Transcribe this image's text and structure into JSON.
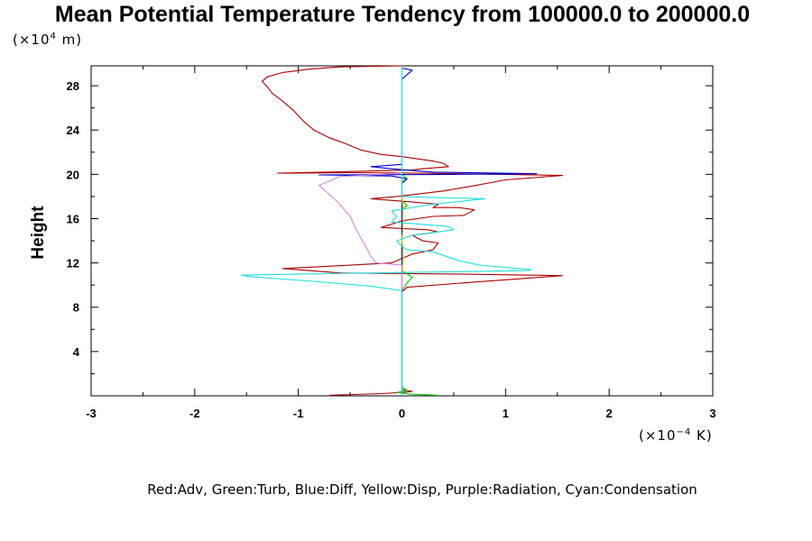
{
  "chart_data": {
    "type": "line",
    "title": "Mean Potential Temperature Tendency from 100000.0 to 200000.0",
    "y_unit_label": "(×10",
    "y_unit_exp": "4",
    "y_unit_suffix": " m)",
    "x_unit_label": "(×10",
    "x_unit_exp": "−4",
    "x_unit_suffix": " K)",
    "ylabel": "Height",
    "xlabel": "",
    "xlim": [
      -3,
      3
    ],
    "ylim": [
      0,
      29.8
    ],
    "x_ticks": [
      -3,
      -2,
      -1,
      0,
      1,
      2,
      3
    ],
    "x_tick_labels": [
      "-3",
      "-2",
      "-1",
      "0",
      "1",
      "2",
      "3"
    ],
    "y_ticks": [
      4,
      8,
      12,
      16,
      20,
      24,
      28
    ],
    "y_tick_labels": [
      "4",
      "8",
      "12",
      "16",
      "20",
      "24",
      "28"
    ],
    "legend_text": "Red:Adv, Green:Turb, Blue:Diff, Yellow:Disp, Purple:Radiation, Cyan:Condensation",
    "legend_position": "bottom",
    "grid": false,
    "series": [
      {
        "name": "Adv",
        "color": "#aa0000",
        "points": [
          [
            -0.7,
            0.05
          ],
          [
            -0.2,
            0.2
          ],
          [
            0.0,
            0.3
          ],
          [
            0.1,
            0.4
          ],
          [
            0.0,
            0.6
          ],
          [
            0.0,
            9.4
          ],
          [
            0.05,
            9.8
          ],
          [
            0.6,
            10.2
          ],
          [
            1.55,
            10.85
          ],
          [
            0.5,
            11.0
          ],
          [
            -0.6,
            11.1
          ],
          [
            -1.15,
            11.5
          ],
          [
            -0.5,
            11.8
          ],
          [
            -0.1,
            12.0
          ],
          [
            0.1,
            12.8
          ],
          [
            0.3,
            13.2
          ],
          [
            0.35,
            13.8
          ],
          [
            0.2,
            14.0
          ],
          [
            0.1,
            14.5
          ],
          [
            0.35,
            14.8
          ],
          [
            0.25,
            15.0
          ],
          [
            -0.2,
            15.2
          ],
          [
            0.0,
            15.8
          ],
          [
            0.3,
            16.2
          ],
          [
            0.6,
            16.3
          ],
          [
            0.7,
            16.8
          ],
          [
            0.55,
            17.0
          ],
          [
            0.3,
            17.0
          ],
          [
            0.35,
            17.3
          ],
          [
            0.1,
            17.5
          ],
          [
            -0.3,
            17.8
          ],
          [
            -0.05,
            18.0
          ],
          [
            0.4,
            18.5
          ],
          [
            0.65,
            18.9
          ],
          [
            1.0,
            19.5
          ],
          [
            1.55,
            19.9
          ],
          [
            1.0,
            20.0
          ],
          [
            0.2,
            20.1
          ],
          [
            -0.5,
            20.15
          ],
          [
            -1.2,
            20.1
          ],
          [
            -0.3,
            20.3
          ],
          [
            0.1,
            20.4
          ],
          [
            0.2,
            20.5
          ],
          [
            0.45,
            20.7
          ],
          [
            0.4,
            21.0
          ],
          [
            0.3,
            21.2
          ],
          [
            0.15,
            21.4
          ],
          [
            0.0,
            21.6
          ],
          [
            -0.2,
            21.8
          ],
          [
            -0.4,
            22.2
          ],
          [
            -0.55,
            22.8
          ],
          [
            -0.7,
            23.3
          ],
          [
            -0.85,
            24.0
          ],
          [
            -0.95,
            24.8
          ],
          [
            -1.05,
            25.8
          ],
          [
            -1.15,
            26.6
          ],
          [
            -1.25,
            27.3
          ],
          [
            -1.3,
            27.9
          ],
          [
            -1.35,
            28.4
          ],
          [
            -1.3,
            28.8
          ],
          [
            -1.15,
            29.2
          ],
          [
            -0.9,
            29.5
          ],
          [
            -0.6,
            29.7
          ],
          [
            -0.3,
            29.75
          ],
          [
            0.0,
            29.8
          ]
        ]
      },
      {
        "name": "Turb",
        "color": "#00cc00",
        "points": [
          [
            0.35,
            0.05
          ],
          [
            0.1,
            0.15
          ],
          [
            -0.05,
            0.3
          ],
          [
            0.05,
            0.5
          ],
          [
            0.0,
            0.8
          ],
          [
            0.0,
            9.5
          ],
          [
            0.05,
            10.2
          ],
          [
            0.1,
            10.7
          ],
          [
            0.05,
            11.0
          ],
          [
            0.0,
            11.3
          ],
          [
            0.0,
            16.8
          ],
          [
            0.05,
            17.2
          ],
          [
            0.0,
            17.6
          ],
          [
            0.0,
            19.3
          ],
          [
            0.05,
            19.6
          ],
          [
            0.0,
            20.0
          ]
        ]
      },
      {
        "name": "Diff",
        "color": "#0000cc",
        "points": [
          [
            0.0,
            0.0
          ],
          [
            0.0,
            10.9
          ],
          [
            0.0,
            11.2
          ],
          [
            0.0,
            19.2
          ],
          [
            0.05,
            19.6
          ],
          [
            -0.1,
            19.85
          ],
          [
            -0.8,
            19.95
          ],
          [
            0.5,
            20.0
          ],
          [
            1.3,
            20.05
          ],
          [
            0.3,
            20.2
          ],
          [
            -0.1,
            20.5
          ],
          [
            -0.3,
            20.7
          ],
          [
            0.0,
            20.9
          ],
          [
            0.0,
            21.2
          ],
          [
            0.0,
            28.6
          ],
          [
            0.05,
            29.0
          ],
          [
            0.1,
            29.4
          ],
          [
            0.0,
            29.6
          ],
          [
            0.0,
            29.8
          ]
        ]
      },
      {
        "name": "Disp",
        "color": "#dddd00",
        "points": [
          [
            0.0,
            0.0
          ],
          [
            0.0,
            11.0
          ],
          [
            0.02,
            12.5
          ],
          [
            0.0,
            14.0
          ],
          [
            0.02,
            16.0
          ],
          [
            0.0,
            18.0
          ],
          [
            0.0,
            20.0
          ]
        ]
      },
      {
        "name": "Radiation",
        "color": "#cc88dd",
        "points": [
          [
            0.0,
            0.0
          ],
          [
            0.0,
            11.8
          ],
          [
            -0.25,
            12.0
          ],
          [
            -0.3,
            12.6
          ],
          [
            -0.35,
            13.5
          ],
          [
            -0.4,
            14.3
          ],
          [
            -0.45,
            15.2
          ],
          [
            -0.5,
            16.2
          ],
          [
            -0.6,
            17.3
          ],
          [
            -0.7,
            18.2
          ],
          [
            -0.8,
            19.0
          ],
          [
            -0.6,
            19.8
          ],
          [
            -0.2,
            20.0
          ],
          [
            0.0,
            20.1
          ]
        ]
      },
      {
        "name": "Condensation",
        "color": "#22dddd",
        "points": [
          [
            0.0,
            0.0
          ],
          [
            0.0,
            9.5
          ],
          [
            -0.3,
            9.9
          ],
          [
            -0.8,
            10.3
          ],
          [
            -1.5,
            10.8
          ],
          [
            -1.55,
            10.9
          ],
          [
            -0.3,
            11.1
          ],
          [
            1.2,
            11.3
          ],
          [
            1.25,
            11.4
          ],
          [
            0.75,
            11.8
          ],
          [
            0.55,
            12.2
          ],
          [
            0.3,
            13.0
          ],
          [
            0.05,
            13.2
          ],
          [
            0.0,
            13.5
          ],
          [
            -0.05,
            14.0
          ],
          [
            0.1,
            14.5
          ],
          [
            0.5,
            15.0
          ],
          [
            0.45,
            15.3
          ],
          [
            -0.1,
            15.7
          ],
          [
            -0.05,
            16.2
          ],
          [
            -0.1,
            16.7
          ],
          [
            0.3,
            17.3
          ],
          [
            0.8,
            17.8
          ],
          [
            0.35,
            17.9
          ],
          [
            0.0,
            18.0
          ],
          [
            0.0,
            29.8
          ]
        ]
      }
    ]
  }
}
